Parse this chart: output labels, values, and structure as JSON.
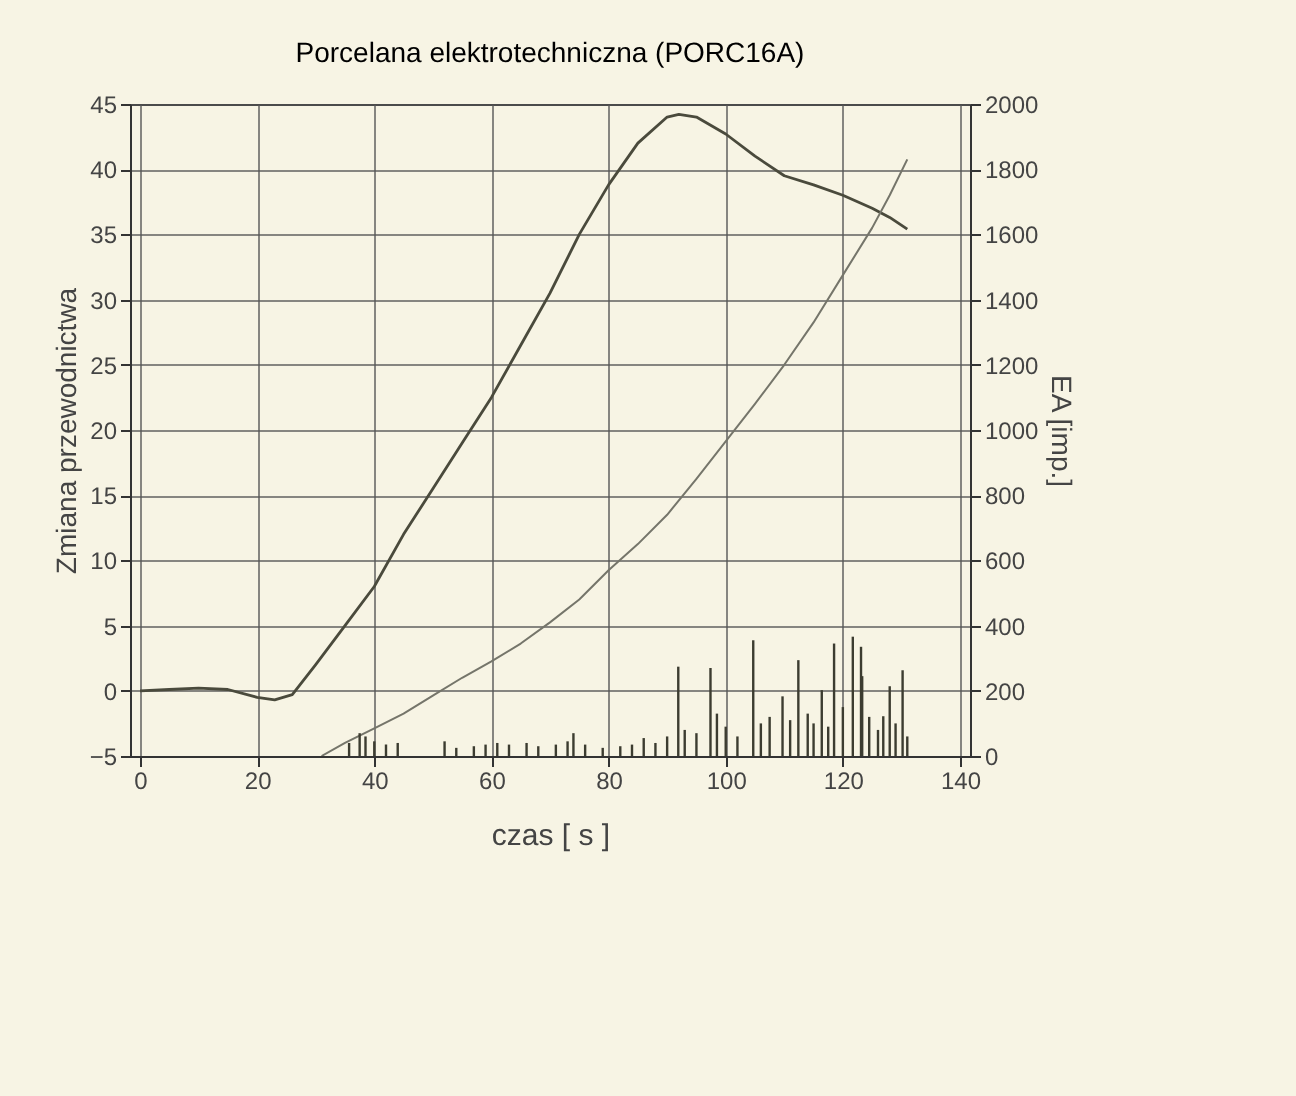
{
  "chart_data": {
    "type": "line",
    "title": "Porcelana elektrotechniczna  (PORC16A)",
    "xlabel": "czas  [ s ]",
    "ylabel": "Zmiana przewodnictwa",
    "y2label": "EA [imp.]",
    "xlim": [
      0,
      140
    ],
    "xticks": [
      0,
      20,
      40,
      60,
      80,
      100,
      120,
      140
    ],
    "ylim": [
      -5,
      45
    ],
    "yticks": [
      -5,
      0,
      5,
      10,
      15,
      20,
      25,
      30,
      35,
      40,
      45
    ],
    "y2lim": [
      0,
      2000
    ],
    "y2ticks": [
      0,
      200,
      400,
      600,
      800,
      1000,
      1200,
      1400,
      1600,
      1800,
      2000
    ],
    "grid": true,
    "series": [
      {
        "color": "#4a4a3c",
        "x": [
          0,
          5,
          10,
          15,
          20,
          23,
          26,
          30,
          35,
          40,
          45,
          50,
          55,
          60,
          65,
          70,
          75,
          80,
          85,
          90,
          92,
          95,
          100,
          105,
          110,
          115,
          120,
          125,
          128,
          131
        ],
        "values": [
          0,
          0.1,
          0.2,
          0.1,
          -0.5,
          -0.7,
          -0.3,
          2,
          5,
          8,
          12,
          15.5,
          19,
          22.5,
          26.5,
          30.5,
          35,
          38.8,
          42,
          44,
          44.2,
          44,
          42.7,
          41,
          39.5,
          38.8,
          38,
          37,
          36.3,
          35.4
        ]
      },
      {
        "type": "line",
        "axis": "y2",
        "color": "#75756a",
        "x": [
          31,
          35,
          40,
          45,
          50,
          55,
          60,
          65,
          70,
          75,
          80,
          85,
          90,
          95,
          100,
          105,
          110,
          115,
          120,
          125,
          128,
          131
        ],
        "values": [
          0,
          40,
          85,
          130,
          185,
          240,
          290,
          345,
          410,
          480,
          570,
          650,
          740,
          850,
          965,
          1080,
          1200,
          1330,
          1475,
          1620,
          1720,
          1830
        ]
      },
      {
        "type": "bar",
        "axis": "y2",
        "color": "#3c3c30",
        "x": [
          35.7,
          37.5,
          38.5,
          40,
          42,
          44,
          52,
          54,
          57,
          59,
          61,
          63,
          66,
          68,
          71,
          73,
          74,
          76,
          79,
          82,
          84,
          86,
          88,
          90,
          91.9,
          93,
          95,
          97.4,
          98.5,
          100,
          102,
          104.7,
          106,
          107.5,
          109.7,
          111,
          112.4,
          114,
          115,
          116.4,
          117.5,
          118.5,
          120,
          121.7,
          123.1,
          123.3,
          124.5,
          126,
          126.9,
          128,
          129,
          130.2,
          131
        ],
        "values": [
          40,
          70,
          60,
          45,
          35,
          40,
          45,
          25,
          30,
          35,
          40,
          35,
          40,
          30,
          35,
          45,
          70,
          35,
          25,
          30,
          35,
          55,
          40,
          60,
          274,
          80,
          70,
          270,
          130,
          90,
          60,
          355,
          100,
          120,
          183,
          110,
          294,
          130,
          100,
          202,
          90,
          345,
          150,
          366,
          335,
          245,
          120,
          80,
          122,
          214,
          100,
          263,
          60
        ]
      }
    ]
  }
}
